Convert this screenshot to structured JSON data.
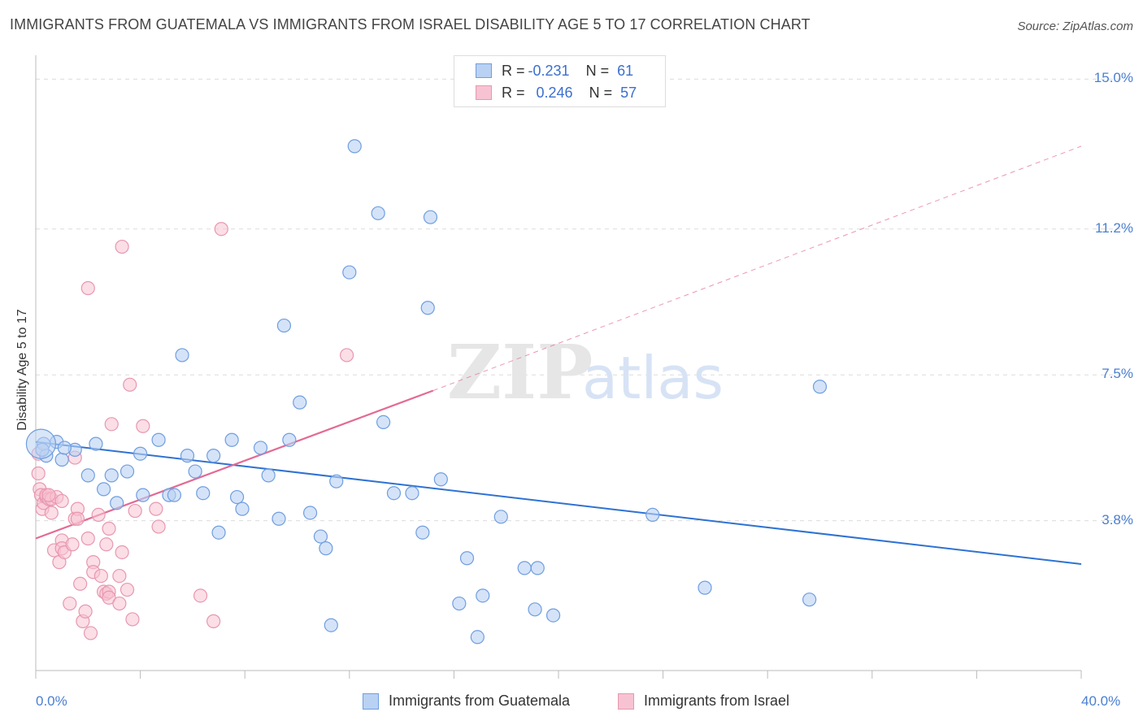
{
  "header": {
    "title": "IMMIGRANTS FROM GUATEMALA VS IMMIGRANTS FROM ISRAEL DISABILITY AGE 5 TO 17 CORRELATION CHART",
    "source": "Source: ZipAtlas.com"
  },
  "watermark": {
    "zip": "ZIP",
    "atlas": "atlas"
  },
  "legend": {
    "rows": [
      {
        "r_label": "R =",
        "r_value": "-0.231",
        "n_label": "N =",
        "n_value": "61"
      },
      {
        "r_label": "R =",
        "r_value": "0.246",
        "n_label": "N =",
        "n_value": "57"
      }
    ]
  },
  "colors": {
    "guatemala_fill": "#b9d1f3",
    "guatemala_stroke": "#6f9ee0",
    "guatemala_line": "#2f72d3",
    "israel_fill": "#f7c3d2",
    "israel_stroke": "#e897b0",
    "israel_line": "#e36b93",
    "tick_text": "#4a7fd1"
  },
  "chart_data": {
    "type": "scatter",
    "title": "IMMIGRANTS FROM GUATEMALA VS IMMIGRANTS FROM ISRAEL DISABILITY AGE 5 TO 17 CORRELATION CHART",
    "xlabel": "",
    "ylabel": "Disability Age 5 to 17",
    "xlim": [
      0,
      40
    ],
    "ylim": [
      0,
      15.4
    ],
    "x_tick_labels": [
      "0.0%",
      "40.0%"
    ],
    "y_ticks": [
      3.8,
      7.5,
      11.2,
      15.0
    ],
    "y_tick_labels": [
      "3.8%",
      "7.5%",
      "11.2%",
      "15.0%"
    ],
    "grid": true,
    "legend_placement": "bottom",
    "series": [
      {
        "name": "Immigrants from Guatemala",
        "R": -0.231,
        "N": 61,
        "trend": {
          "x": [
            0,
            40
          ],
          "y": [
            5.8,
            2.7
          ],
          "style": "solid"
        },
        "points": [
          [
            0.3,
            5.75
          ],
          [
            0.4,
            5.45
          ],
          [
            0.8,
            5.8
          ],
          [
            1.0,
            5.35
          ],
          [
            1.5,
            5.6
          ],
          [
            2.0,
            4.95
          ],
          [
            2.3,
            5.75
          ],
          [
            2.6,
            4.6
          ],
          [
            2.9,
            4.95
          ],
          [
            3.1,
            4.25
          ],
          [
            3.5,
            5.05
          ],
          [
            4.0,
            5.5
          ],
          [
            4.1,
            4.45
          ],
          [
            4.7,
            5.85
          ],
          [
            5.1,
            4.45
          ],
          [
            5.3,
            4.45
          ],
          [
            5.6,
            8.0
          ],
          [
            5.8,
            5.45
          ],
          [
            6.1,
            5.05
          ],
          [
            6.4,
            4.5
          ],
          [
            6.8,
            5.45
          ],
          [
            7.0,
            3.5
          ],
          [
            7.5,
            5.85
          ],
          [
            7.7,
            4.4
          ],
          [
            7.9,
            4.1
          ],
          [
            8.6,
            5.65
          ],
          [
            8.9,
            4.95
          ],
          [
            9.3,
            3.85
          ],
          [
            9.5,
            8.75
          ],
          [
            9.7,
            5.85
          ],
          [
            10.1,
            6.8
          ],
          [
            10.5,
            4.0
          ],
          [
            10.9,
            3.4
          ],
          [
            11.1,
            3.1
          ],
          [
            11.3,
            1.15
          ],
          [
            11.5,
            4.8
          ],
          [
            12.0,
            10.1
          ],
          [
            12.2,
            13.3
          ],
          [
            13.1,
            11.6
          ],
          [
            13.3,
            6.3
          ],
          [
            13.7,
            4.5
          ],
          [
            14.4,
            4.5
          ],
          [
            14.8,
            3.5
          ],
          [
            15.0,
            9.2
          ],
          [
            15.1,
            11.5
          ],
          [
            15.5,
            4.85
          ],
          [
            16.2,
            1.7
          ],
          [
            16.5,
            2.85
          ],
          [
            16.9,
            0.85
          ],
          [
            17.1,
            1.9
          ],
          [
            17.8,
            3.9
          ],
          [
            18.7,
            2.6
          ],
          [
            19.1,
            1.55
          ],
          [
            19.2,
            2.6
          ],
          [
            19.8,
            1.4
          ],
          [
            23.6,
            3.95
          ],
          [
            25.6,
            2.1
          ],
          [
            29.6,
            1.8
          ],
          [
            30.0,
            7.2
          ],
          [
            0.25,
            5.6
          ],
          [
            1.1,
            5.65
          ]
        ]
      },
      {
        "name": "Immigrants from Israel",
        "R": 0.246,
        "N": 57,
        "trend": {
          "x": [
            0,
            15.2,
            40
          ],
          "y": [
            3.35,
            7.1,
            13.3
          ],
          "style": "solid-then-dashed"
        },
        "points": [
          [
            0.1,
            5.5
          ],
          [
            0.1,
            5.0
          ],
          [
            0.15,
            4.6
          ],
          [
            0.2,
            4.45
          ],
          [
            0.25,
            4.1
          ],
          [
            0.3,
            4.25
          ],
          [
            0.4,
            4.4
          ],
          [
            0.4,
            4.45
          ],
          [
            0.5,
            4.35
          ],
          [
            0.6,
            4.0
          ],
          [
            0.6,
            4.35
          ],
          [
            0.7,
            3.05
          ],
          [
            0.8,
            4.4
          ],
          [
            0.9,
            2.75
          ],
          [
            1.0,
            3.3
          ],
          [
            1.0,
            3.1
          ],
          [
            1.0,
            4.3
          ],
          [
            1.1,
            3.0
          ],
          [
            1.3,
            1.7
          ],
          [
            1.4,
            3.2
          ],
          [
            1.5,
            5.4
          ],
          [
            1.5,
            3.85
          ],
          [
            1.6,
            4.1
          ],
          [
            1.6,
            3.85
          ],
          [
            1.7,
            2.2
          ],
          [
            1.8,
            1.25
          ],
          [
            1.9,
            1.5
          ],
          [
            2.0,
            3.35
          ],
          [
            2.1,
            0.95
          ],
          [
            2.2,
            2.75
          ],
          [
            2.2,
            2.5
          ],
          [
            2.4,
            3.95
          ],
          [
            2.5,
            2.4
          ],
          [
            2.6,
            2.0
          ],
          [
            2.7,
            1.95
          ],
          [
            2.7,
            3.2
          ],
          [
            2.8,
            3.6
          ],
          [
            2.8,
            2.0
          ],
          [
            2.8,
            1.85
          ],
          [
            3.2,
            1.7
          ],
          [
            3.2,
            2.4
          ],
          [
            3.3,
            3.0
          ],
          [
            3.5,
            2.05
          ],
          [
            3.6,
            7.25
          ],
          [
            3.7,
            1.3
          ],
          [
            3.8,
            4.05
          ],
          [
            4.1,
            6.2
          ],
          [
            4.6,
            4.1
          ],
          [
            2.0,
            9.7
          ],
          [
            3.3,
            10.75
          ],
          [
            4.7,
            3.65
          ],
          [
            6.3,
            1.9
          ],
          [
            6.8,
            1.25
          ],
          [
            7.1,
            11.2
          ],
          [
            11.9,
            8.0
          ],
          [
            2.9,
            6.25
          ],
          [
            0.5,
            4.45
          ]
        ]
      }
    ]
  },
  "bottom_legend": {
    "guatemala_label": "Immigrants from Guatemala",
    "israel_label": "Immigrants from Israel"
  }
}
